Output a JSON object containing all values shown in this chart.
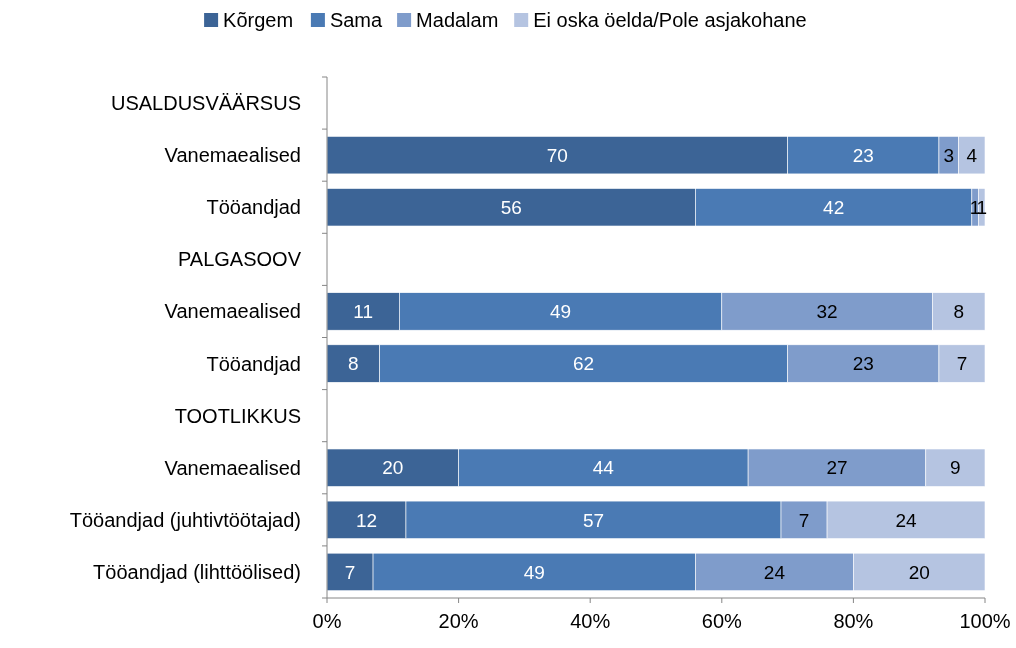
{
  "chart_data": {
    "type": "bar",
    "orientation": "horizontal",
    "stacked": true,
    "data_labels": true,
    "legend": "top",
    "grid": false,
    "categories": [
      "USALDUSVÄÄRSUS",
      "Vanemaealised",
      "Tööandjad",
      "PALGASOOV",
      "Vanemaealised",
      "Tööandjad",
      "TOOTLIKKUS",
      "Vanemaealised",
      "Tööandjad (juhtivtöötajad)",
      "Tööandjad (lihttöölised)"
    ],
    "series": [
      {
        "name": "Kõrgem",
        "color": "#3c6496",
        "values": [
          null,
          70,
          56,
          null,
          11,
          8,
          null,
          20,
          12,
          7
        ]
      },
      {
        "name": "Sama",
        "color": "#4a7ab4",
        "values": [
          null,
          23,
          42,
          null,
          49,
          62,
          null,
          44,
          57,
          49
        ]
      },
      {
        "name": "Madalam",
        "color": "#7f9ccb",
        "values": [
          null,
          3,
          1,
          null,
          32,
          23,
          null,
          27,
          7,
          24
        ]
      },
      {
        "name": "Ei oska öelda/Pole asjakohane",
        "color": "#b5c4e1",
        "values": [
          null,
          4,
          1,
          null,
          8,
          7,
          null,
          9,
          24,
          20
        ]
      }
    ],
    "xlim": [
      0,
      100
    ],
    "xticks": [
      {
        "value": 0,
        "label": "0%"
      },
      {
        "value": 20,
        "label": "20%"
      },
      {
        "value": 40,
        "label": "40%"
      },
      {
        "value": 60,
        "label": "60%"
      },
      {
        "value": 80,
        "label": "80%"
      },
      {
        "value": 100,
        "label": "100%"
      }
    ]
  }
}
